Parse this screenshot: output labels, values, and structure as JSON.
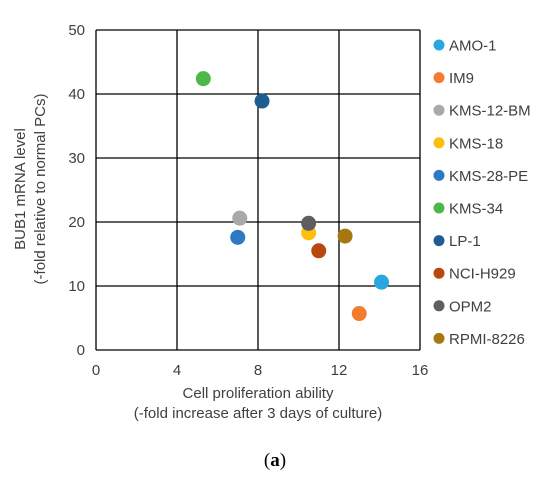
{
  "chart_data": {
    "type": "scatter",
    "xlabel": [
      "Cell proliferation ability",
      "(-fold increase after 3 days of culture)"
    ],
    "ylabel": [
      "BUB1 mRNA level",
      "(-fold relative to normal PCs)"
    ],
    "xlim": [
      0,
      16
    ],
    "ylim": [
      0,
      50
    ],
    "xticks": [
      "0",
      "4",
      "8",
      "12",
      "16"
    ],
    "yticks": [
      "0",
      "10",
      "20",
      "30",
      "40",
      "50"
    ],
    "grid": true,
    "legend_position": "right",
    "caption": {
      "open": "(",
      "letter": "a",
      "close": ")"
    },
    "series": [
      {
        "name": "AMO-1",
        "color": "#29a8e0",
        "x": 14.1,
        "y": 10.6
      },
      {
        "name": "IM9",
        "color": "#f47c30",
        "x": 13.0,
        "y": 5.7
      },
      {
        "name": "KMS-12-BM",
        "color": "#a9a9a9",
        "x": 7.1,
        "y": 20.6
      },
      {
        "name": "KMS-18",
        "color": "#fcc00c",
        "x": 10.5,
        "y": 18.3
      },
      {
        "name": "KMS-28-PE",
        "color": "#2f78c5",
        "x": 7.0,
        "y": 17.6
      },
      {
        "name": "KMS-34",
        "color": "#4db848",
        "x": 5.3,
        "y": 42.4
      },
      {
        "name": "LP-1",
        "color": "#1e5d91",
        "x": 8.2,
        "y": 38.9
      },
      {
        "name": "NCI-H929",
        "color": "#b9480f",
        "x": 11.0,
        "y": 15.5
      },
      {
        "name": "OPM2",
        "color": "#5e5e5e",
        "x": 10.5,
        "y": 19.8
      },
      {
        "name": "RPMI-8226",
        "color": "#a7780f",
        "x": 12.3,
        "y": 17.8
      }
    ]
  }
}
